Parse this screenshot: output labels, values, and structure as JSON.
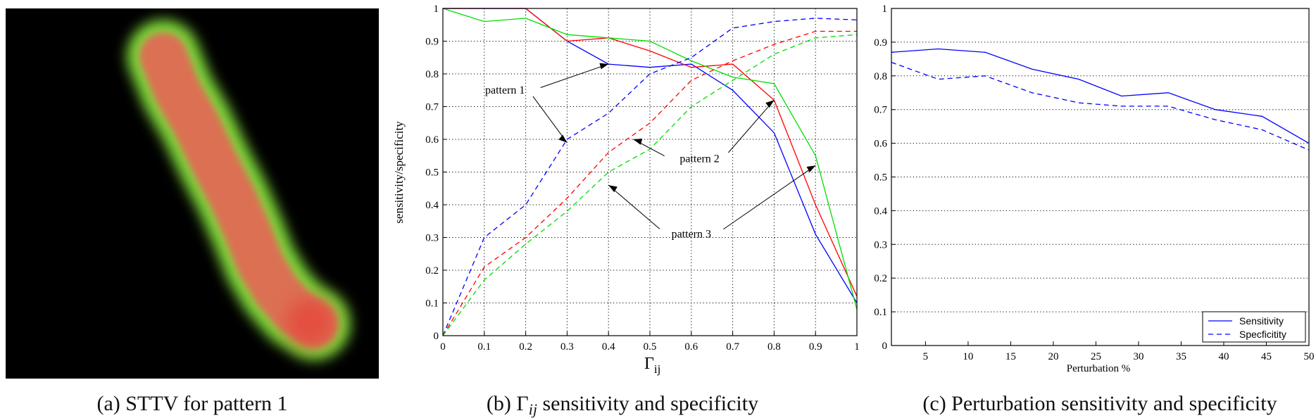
{
  "captions": {
    "a": "(a)  STTV for pattern 1",
    "b_prefix": "(b)  Γ",
    "b_sub": "ij",
    "b_suffix": " sensitivity and specificity",
    "c": "(c)  Perturbation sensitivity and specificity"
  },
  "colors": {
    "image_background": "#000000",
    "stroke_glow": "#7fd83a",
    "stroke_body": "#dc6f52",
    "stroke_end": "#e54a3e",
    "pattern1": "#0000ff",
    "pattern2": "#ff0000",
    "pattern3": "#00dd00"
  },
  "chart_data": [
    {
      "type": "line",
      "panel": "b",
      "xlabel_main": "Γ",
      "xlabel_sub": "ij",
      "ylabel": "sensitivity/specificity",
      "xlim": [
        0,
        1
      ],
      "ylim": [
        0,
        1
      ],
      "xticks": [
        "0",
        "0.1",
        "0.2",
        "0.3",
        "0.4",
        "0.5",
        "0.6",
        "0.7",
        "0.8",
        "0.9",
        "1"
      ],
      "yticks": [
        "0",
        "0.1",
        "0.2",
        "0.3",
        "0.4",
        "0.5",
        "0.6",
        "0.7",
        "0.8",
        "0.9",
        "1"
      ],
      "grid": true,
      "x": [
        0,
        0.1,
        0.2,
        0.3,
        0.4,
        0.5,
        0.6,
        0.7,
        0.8,
        0.9,
        1
      ],
      "series": [
        {
          "group": "pattern 1",
          "style": "solid",
          "color": "#0000ff",
          "values": [
            1.0,
            1.0,
            1.0,
            0.9,
            0.83,
            0.82,
            0.83,
            0.75,
            0.62,
            0.31,
            0.1
          ]
        },
        {
          "group": "pattern 2",
          "style": "solid",
          "color": "#ff0000",
          "values": [
            1.0,
            1.0,
            1.0,
            0.9,
            0.91,
            0.87,
            0.82,
            0.83,
            0.72,
            0.4,
            0.12
          ]
        },
        {
          "group": "pattern 3",
          "style": "solid",
          "color": "#00dd00",
          "values": [
            1.0,
            0.96,
            0.97,
            0.92,
            0.91,
            0.9,
            0.84,
            0.79,
            0.77,
            0.55,
            0.08
          ]
        },
        {
          "group": "pattern 1",
          "style": "dashed",
          "color": "#0000ff",
          "values": [
            0.0,
            0.3,
            0.4,
            0.6,
            0.68,
            0.8,
            0.85,
            0.94,
            0.96,
            0.97,
            0.965
          ]
        },
        {
          "group": "pattern 2",
          "style": "dashed",
          "color": "#ff0000",
          "values": [
            0.0,
            0.21,
            0.3,
            0.42,
            0.56,
            0.65,
            0.78,
            0.84,
            0.89,
            0.93,
            0.93
          ]
        },
        {
          "group": "pattern 3",
          "style": "dashed",
          "color": "#00dd00",
          "values": [
            0.0,
            0.17,
            0.28,
            0.38,
            0.5,
            0.57,
            0.7,
            0.78,
            0.86,
            0.91,
            0.92
          ]
        }
      ],
      "annotations": [
        {
          "text": "pattern 1",
          "at": [
            0.15,
            0.74
          ],
          "arrows": [
            [
              0.4,
              0.83
            ],
            [
              0.3,
              0.59
            ]
          ]
        },
        {
          "text": "pattern 2",
          "at": [
            0.62,
            0.53
          ],
          "arrows": [
            [
              0.46,
              0.6
            ],
            [
              0.8,
              0.72
            ]
          ]
        },
        {
          "text": "pattern 3",
          "at": [
            0.6,
            0.3
          ],
          "arrows": [
            [
              0.4,
              0.46
            ],
            [
              0.9,
              0.52
            ]
          ]
        }
      ]
    },
    {
      "type": "line",
      "panel": "c",
      "xlabel": "Perturbation %",
      "xlim": [
        1,
        50
      ],
      "ylim": [
        0,
        1
      ],
      "xticks": [
        "5",
        "10",
        "15",
        "20",
        "25",
        "30",
        "35",
        "40",
        "45",
        "50"
      ],
      "yticks": [
        "0",
        "0.1",
        "0.2",
        "0.3",
        "0.4",
        "0.5",
        "0.6",
        "0.7",
        "0.8",
        "0.9",
        "1"
      ],
      "grid": "horizontal",
      "legend_position": "bottom-right",
      "x": [
        1,
        6.5,
        12,
        17.5,
        23,
        28,
        33.5,
        39,
        44.5,
        50
      ],
      "series": [
        {
          "name": "Sensitivity",
          "style": "solid",
          "color": "#0000ff",
          "values": [
            0.87,
            0.88,
            0.87,
            0.82,
            0.79,
            0.74,
            0.75,
            0.7,
            0.68,
            0.6
          ]
        },
        {
          "name": "Specficitity",
          "style": "dashed",
          "color": "#0000ff",
          "values": [
            0.84,
            0.79,
            0.8,
            0.75,
            0.72,
            0.71,
            0.71,
            0.67,
            0.64,
            0.58
          ]
        }
      ]
    }
  ]
}
